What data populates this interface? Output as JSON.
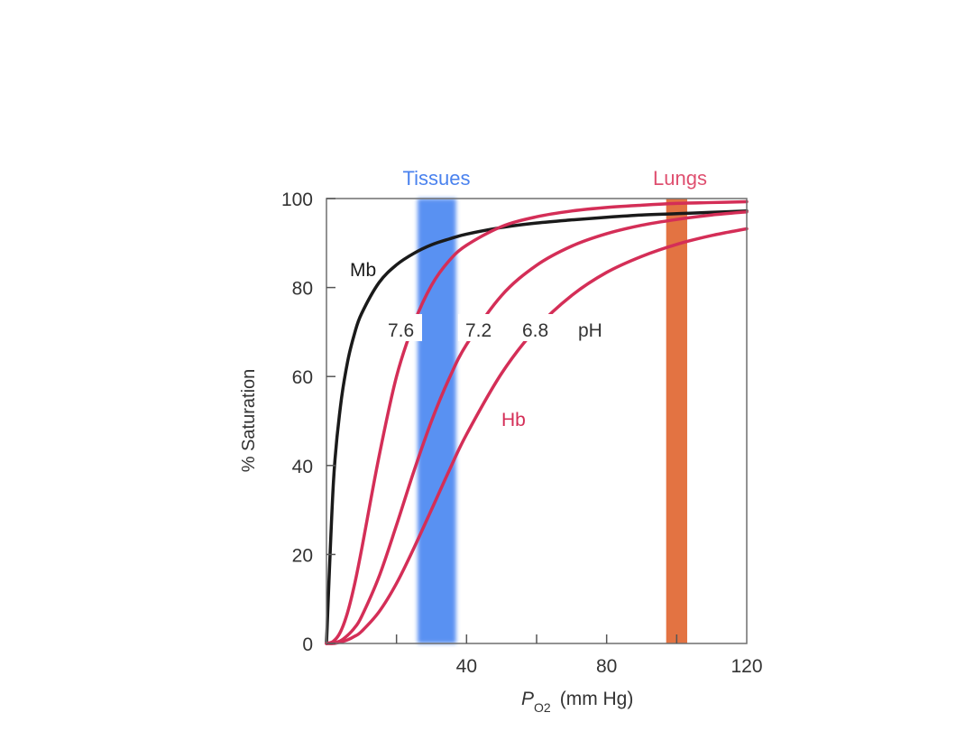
{
  "chart_data": {
    "type": "line",
    "title": "",
    "xlabel": "P",
    "xlabel_subscript": "O2",
    "xlabel_units": "(mm Hg)",
    "ylabel": "% Saturation",
    "xlim": [
      0,
      120
    ],
    "ylim": [
      0,
      100
    ],
    "x_ticks": [
      20,
      40,
      60,
      80,
      100
    ],
    "x_tick_labels": [
      "40",
      "80",
      "120"
    ],
    "x_tick_label_values": [
      40,
      80,
      120
    ],
    "y_ticks": [
      0,
      20,
      40,
      60,
      80,
      100
    ],
    "y_tick_labels": [
      "0",
      "20",
      "40",
      "60",
      "80",
      "100"
    ],
    "grid": false,
    "bands": [
      {
        "label": "Tissues",
        "range": [
          26,
          37
        ],
        "color": "#3d7ef0"
      },
      {
        "label": "Lungs",
        "range": [
          97,
          103
        ],
        "color": "#e0642e"
      }
    ],
    "x": [
      0,
      2,
      4,
      6,
      8,
      10,
      15,
      20,
      25,
      30,
      35,
      40,
      50,
      60,
      70,
      80,
      90,
      100,
      110,
      120
    ],
    "series": [
      {
        "name": "Mb",
        "color": "#1a1a1a",
        "values": [
          0,
          36.4,
          53.3,
          63.2,
          69.6,
          74.1,
          81.1,
          85.1,
          87.7,
          89.6,
          90.9,
          92,
          93.5,
          94.5,
          95.2,
          95.8,
          96.3,
          96.6,
          96.9,
          97.2
        ]
      },
      {
        "name": "7.6",
        "color": "#d42e57",
        "values": [
          0,
          0.5,
          2.6,
          6.9,
          13.2,
          21,
          42,
          60,
          72,
          80.5,
          86,
          89.5,
          93.7,
          95.9,
          97.2,
          98,
          98.5,
          98.9,
          99.1,
          99.3
        ]
      },
      {
        "name": "7.2",
        "color": "#d42e57",
        "values": [
          0,
          0.1,
          0.6,
          1.8,
          3.5,
          6,
          15,
          26.6,
          38.8,
          50,
          59.5,
          67.2,
          78.2,
          85,
          89.3,
          92.1,
          94,
          95.3,
          96.3,
          97
        ]
      },
      {
        "name": "6.8",
        "color": "#d42e57",
        "values": [
          0,
          0,
          0.3,
          0.8,
          1.6,
          2.7,
          7.1,
          13.5,
          21.5,
          30.1,
          38.8,
          47,
          60.7,
          70.9,
          78.2,
          83.4,
          87,
          89.7,
          91.7,
          93.2
        ]
      }
    ],
    "annotations": {
      "mb": "Mb",
      "hb": "Hb",
      "ph": "pH"
    }
  }
}
